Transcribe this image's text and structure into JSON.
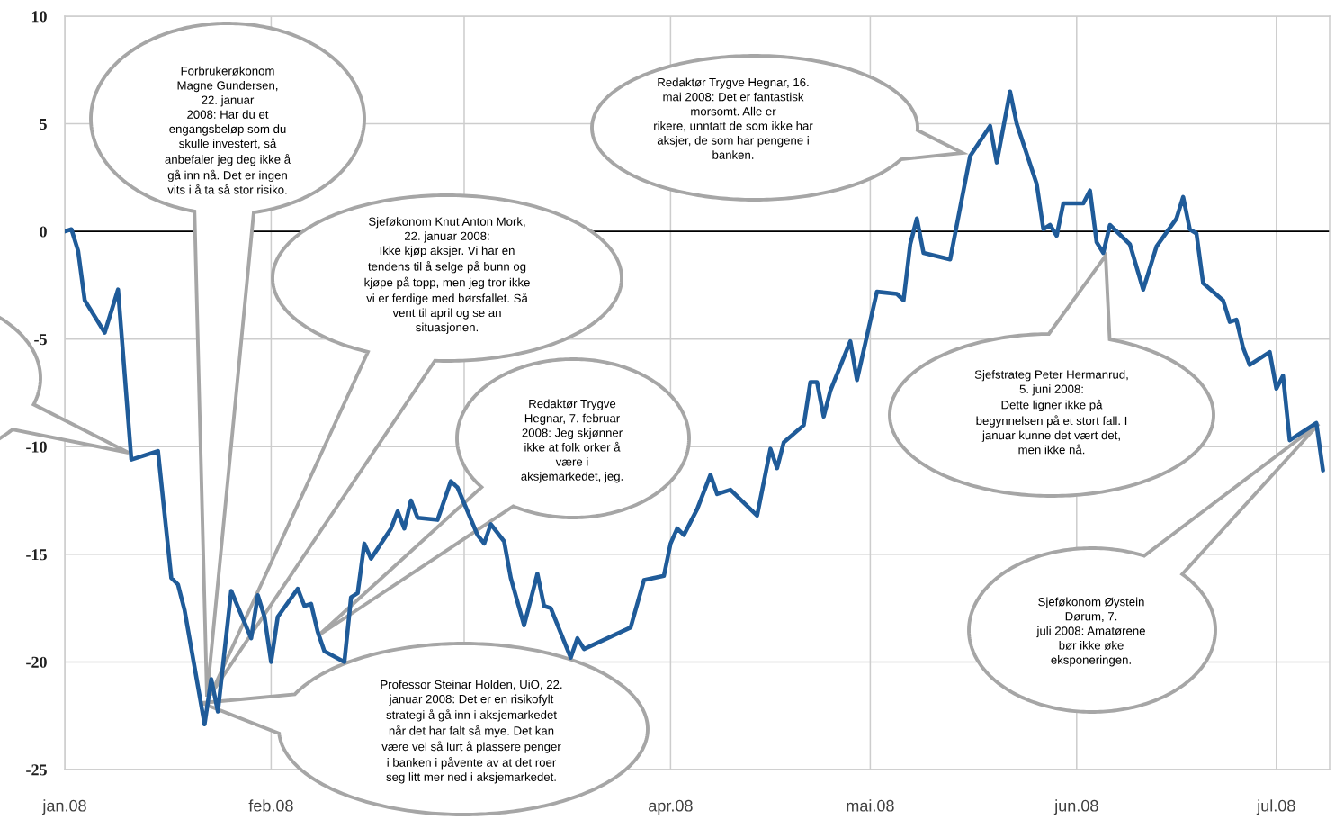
{
  "chart_data": {
    "type": "line",
    "x": [
      "2008-01-01",
      "2008-01-02",
      "2008-01-03",
      "2008-01-04",
      "2008-01-07",
      "2008-01-09",
      "2008-01-11",
      "2008-01-15",
      "2008-01-17",
      "2008-01-18",
      "2008-01-19",
      "2008-01-22",
      "2008-01-23",
      "2008-01-24",
      "2008-01-26",
      "2008-01-29",
      "2008-01-30",
      "2008-01-31",
      "2008-02-01",
      "2008-02-02",
      "2008-02-05",
      "2008-02-06",
      "2008-02-07",
      "2008-02-08",
      "2008-02-09",
      "2008-02-12",
      "2008-02-13",
      "2008-02-14",
      "2008-02-15",
      "2008-02-16",
      "2008-02-19",
      "2008-02-20",
      "2008-02-21",
      "2008-02-22",
      "2008-02-23",
      "2008-02-26",
      "2008-02-28",
      "2008-02-29",
      "2008-03-03",
      "2008-03-04",
      "2008-03-05",
      "2008-03-07",
      "2008-03-08",
      "2008-03-10",
      "2008-03-12",
      "2008-03-13",
      "2008-03-14",
      "2008-03-17",
      "2008-03-18",
      "2008-03-19",
      "2008-03-26",
      "2008-03-28",
      "2008-03-31",
      "2008-04-01",
      "2008-04-02",
      "2008-04-03",
      "2008-04-05",
      "2008-04-07",
      "2008-04-08",
      "2008-04-10",
      "2008-04-14",
      "2008-04-16",
      "2008-04-17",
      "2008-04-18",
      "2008-04-21",
      "2008-04-22",
      "2008-04-23",
      "2008-04-24",
      "2008-04-25",
      "2008-04-28",
      "2008-04-29",
      "2008-05-02",
      "2008-05-05",
      "2008-05-06",
      "2008-05-07",
      "2008-05-08",
      "2008-05-09",
      "2008-05-13",
      "2008-05-16",
      "2008-05-19",
      "2008-05-20",
      "2008-05-22",
      "2008-05-23",
      "2008-05-26",
      "2008-05-27",
      "2008-05-28",
      "2008-05-29",
      "2008-05-30",
      "2008-06-02",
      "2008-06-03",
      "2008-06-04",
      "2008-06-05",
      "2008-06-06",
      "2008-06-09",
      "2008-06-11",
      "2008-06-13",
      "2008-06-16",
      "2008-06-17",
      "2008-06-18",
      "2008-06-19",
      "2008-06-20",
      "2008-06-23",
      "2008-06-24",
      "2008-06-25",
      "2008-06-26",
      "2008-06-27",
      "2008-06-30",
      "2008-07-01",
      "2008-07-02",
      "2008-07-03",
      "2008-07-07",
      "2008-07-08"
    ],
    "series": [
      {
        "color": "#1f5b99",
        "values": [
          0,
          0.1,
          -0.9,
          -3.2,
          -4.7,
          -2.7,
          -10.6,
          -10.2,
          -16.1,
          -16.4,
          -17.6,
          -22.9,
          -20.8,
          -22.3,
          -16.7,
          -18.9,
          -16.9,
          -17.9,
          -20.0,
          -17.9,
          -16.6,
          -17.4,
          -17.3,
          -18.6,
          -19.5,
          -20.0,
          -17.0,
          -16.8,
          -14.5,
          -15.2,
          -13.8,
          -13.0,
          -13.8,
          -12.5,
          -13.3,
          -13.4,
          -11.6,
          -11.9,
          -14.1,
          -14.5,
          -13.6,
          -14.4,
          -16.1,
          -18.3,
          -15.9,
          -17.4,
          -17.5,
          -19.8,
          -18.9,
          -19.4,
          -18.4,
          -16.2,
          -16.0,
          -14.5,
          -13.8,
          -14.1,
          -12.9,
          -11.3,
          -12.2,
          -12.0,
          -13.2,
          -10.1,
          -11.0,
          -9.8,
          -9.0,
          -7.0,
          -7.0,
          -8.6,
          -7.4,
          -5.1,
          -6.9,
          -2.8,
          -2.9,
          -3.2,
          -0.6,
          0.6,
          -1.0,
          -1.3,
          3.5,
          4.9,
          3.2,
          6.5,
          5.0,
          2.2,
          0.1,
          0.3,
          -0.2,
          1.3,
          1.3,
          1.9,
          -0.5,
          -1.0,
          0.3,
          -0.6,
          -2.7,
          -0.7,
          0.6,
          1.6,
          0.1,
          -0.1,
          -2.4,
          -3.2,
          -4.2,
          -4.1,
          -5.4,
          -6.2,
          -5.6,
          -7.3,
          -6.7,
          -9.7,
          -8.9,
          -11.1
        ]
      }
    ],
    "xlim": [
      "2008-01-01",
      "2008-07-09"
    ],
    "xticks": [
      {
        "value": "2008-01-01",
        "label": "jan.08"
      },
      {
        "value": "2008-02-01",
        "label": "feb.08"
      },
      {
        "value": "2008-03-01",
        "label": null
      },
      {
        "value": "2008-04-01",
        "label": "apr.08"
      },
      {
        "value": "2008-05-01",
        "label": "mai.08"
      },
      {
        "value": "2008-06-01",
        "label": "jun.08"
      },
      {
        "value": "2008-07-01",
        "label": "jul.08"
      }
    ],
    "ylim": [
      -25,
      10
    ],
    "yticks": [
      -25,
      -20,
      -15,
      -10,
      -5,
      0,
      5,
      10
    ],
    "grid": true,
    "ref_lines": [
      {
        "axis": "y",
        "value": 0,
        "color": "#000000"
      }
    ],
    "annotations": [
      "Forbrukerøkonom\nMagne Gundersen,\n22. januar\n2008: Har du et\nengangsbeløp som du\nskulle investert, så\nanbefaler jeg deg ikke å\ngå inn nå. Det er ingen\nvits i å ta så stor risiko.",
      "Sjeføkonom Knut Anton Mork,\n22. januar 2008:\nIkke kjøp aksjer. Vi har en\ntendens til å selge på bunn og\nkjøpe på topp, men jeg tror ikke\nvi er ferdige med børsfallet. Så\nvent til april og se an\nsituasjonen.",
      "Redaktør Trygve\nHegnar, 7. februar\n2008: Jeg skjønner\nikke at folk orker å\nvære i\naksjemarkedet, jeg.",
      "Professor Steinar Holden, UiO, 22.\njanuar 2008: Det er en risikofylt\nstrategi å gå inn i aksjemarkedet\nnår det har falt så mye. Det kan\nvære vel så lurt å plassere penger\ni banken i påvente av at det roer\nseg litt mer ned i aksjemarkedet.",
      "Redaktør Trygve Hegnar, 16.\nmai 2008: Det er fantastisk\nmorsomt. Alle er\nrikere, unntatt de som ikke har\naksjer, de som har pengene i\nbanken.",
      "Sjefstrateg Peter Hermanrud,\n5. juni 2008:\nDette ligner ikke på\nbegynnelsen på et stort fall. I\njanuar kunne det vært det,\nmen ikke nå.",
      "Sjeføkonom Øystein\nDørum, 7.\njuli 2008: Amatørene\nbør ikke øke\neksponeringen."
    ]
  }
}
